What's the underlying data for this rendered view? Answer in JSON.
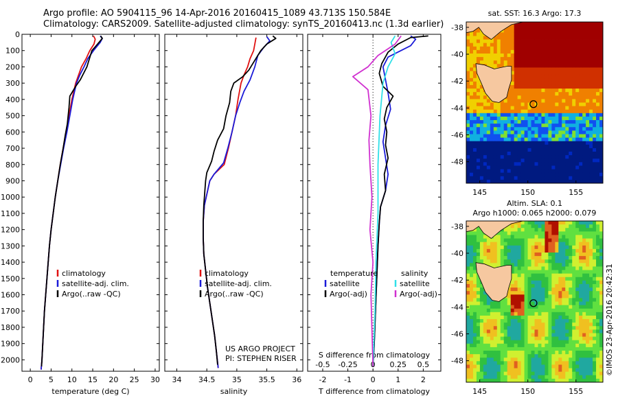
{
  "header": {
    "line1": "Argo profile: AO 5904115_96 14-Apr-2016 20160415_1089 43.713S 150.584E",
    "line2": "Climatology: CARS2009. Satellite-adjusted climatology: synTS_20160413.nc (1.3d earlier)"
  },
  "timestamp": "©IMOS 23-Apr-2016 20:42:31",
  "colors": {
    "climatology": "#e01010",
    "satellite": "#1a1ad8",
    "argo": "#000000",
    "sat_salinity": "#30e0e8",
    "argo_salinity": "#d030d0"
  },
  "chart_data": [
    {
      "type": "line",
      "xlabel": "temperature (deg C)",
      "ylabel": "",
      "xlim": [
        -2,
        31
      ],
      "ylim": [
        2070,
        0
      ],
      "xticks": [
        "0",
        "5",
        "10",
        "15",
        "20",
        "25",
        "30"
      ],
      "yticks": [
        "0",
        "100",
        "200",
        "300",
        "400",
        "500",
        "600",
        "700",
        "800",
        "900",
        "1000",
        "1100",
        "1200",
        "1300",
        "1400",
        "1500",
        "1600",
        "1700",
        "1800",
        "1900",
        "2000"
      ],
      "legend": [
        "climatology",
        "satellite-adj. clim.",
        "Argo(..raw -QC)"
      ],
      "series": [
        {
          "name": "climatology",
          "color": "#e01010",
          "points": [
            [
              15.2,
              10
            ],
            [
              15.6,
              30
            ],
            [
              15.3,
              60
            ],
            [
              14.3,
              100
            ],
            [
              13.4,
              150
            ],
            [
              12.3,
              200
            ],
            [
              11.6,
              250
            ],
            [
              10.9,
              300
            ],
            [
              10.0,
              400
            ],
            [
              9.3,
              500
            ],
            [
              8.6,
              600
            ],
            [
              7.9,
              700
            ],
            [
              7.2,
              800
            ],
            [
              6.6,
              900
            ],
            [
              6.0,
              1000
            ],
            [
              5.5,
              1100
            ],
            [
              5.0,
              1200
            ],
            [
              4.6,
              1300
            ],
            [
              4.3,
              1400
            ],
            [
              4.0,
              1500
            ],
            [
              3.7,
              1600
            ],
            [
              3.4,
              1700
            ],
            [
              3.2,
              1800
            ],
            [
              3.0,
              1900
            ],
            [
              2.8,
              2000
            ],
            [
              2.6,
              2060
            ]
          ]
        },
        {
          "name": "satellite-adj. clim.",
          "color": "#1a1ad8",
          "points": [
            [
              16.8,
              10
            ],
            [
              17.3,
              25
            ],
            [
              16.8,
              50
            ],
            [
              15.2,
              100
            ],
            [
              13.8,
              150
            ],
            [
              12.9,
              200
            ],
            [
              11.9,
              250
            ],
            [
              11.1,
              300
            ],
            [
              10.2,
              400
            ],
            [
              9.5,
              500
            ],
            [
              8.8,
              600
            ],
            [
              8.0,
              700
            ],
            [
              7.3,
              800
            ],
            [
              6.6,
              900
            ],
            [
              6.0,
              1000
            ],
            [
              5.5,
              1100
            ],
            [
              5.0,
              1200
            ],
            [
              4.6,
              1300
            ],
            [
              4.3,
              1400
            ],
            [
              4.0,
              1500
            ],
            [
              3.7,
              1600
            ],
            [
              3.4,
              1700
            ],
            [
              3.2,
              1800
            ],
            [
              3.0,
              1900
            ],
            [
              2.8,
              2000
            ],
            [
              2.6,
              2060
            ]
          ]
        },
        {
          "name": "Argo(..raw -QC)",
          "color": "#000000",
          "points": [
            [
              16.9,
              10
            ],
            [
              17.3,
              25
            ],
            [
              16.5,
              50
            ],
            [
              15.5,
              80
            ],
            [
              14.8,
              100
            ],
            [
              14.2,
              150
            ],
            [
              13.6,
              200
            ],
            [
              12.0,
              280
            ],
            [
              10.9,
              320
            ],
            [
              9.5,
              380
            ],
            [
              9.3,
              450
            ],
            [
              8.9,
              550
            ],
            [
              8.4,
              620
            ],
            [
              7.9,
              700
            ],
            [
              7.2,
              800
            ],
            [
              6.6,
              900
            ],
            [
              6.0,
              1000
            ],
            [
              5.5,
              1100
            ],
            [
              5.0,
              1200
            ],
            [
              4.6,
              1300
            ],
            [
              4.3,
              1400
            ],
            [
              4.0,
              1500
            ],
            [
              3.7,
              1600
            ],
            [
              3.4,
              1700
            ],
            [
              3.2,
              1800
            ],
            [
              3.0,
              1900
            ],
            [
              2.8,
              2000
            ],
            [
              2.7,
              2040
            ]
          ]
        }
      ]
    },
    {
      "type": "line",
      "xlabel": "salinity",
      "xlim": [
        33.8,
        36.1
      ],
      "ylim": [
        2070,
        0
      ],
      "xticks": [
        "34",
        "34.5",
        "35",
        "35.5",
        "36"
      ],
      "legend": [
        "climatology",
        "satellite-adj. clim.",
        "Argo(..raw -QC)"
      ],
      "annotation": [
        "US ARGO PROJECT",
        "PI: STEPHEN RISER"
      ],
      "series": [
        {
          "name": "climatology",
          "color": "#e01010",
          "points": [
            [
              35.32,
              20
            ],
            [
              35.3,
              60
            ],
            [
              35.28,
              100
            ],
            [
              35.22,
              150
            ],
            [
              35.18,
              200
            ],
            [
              35.12,
              250
            ],
            [
              35.07,
              300
            ],
            [
              35.02,
              400
            ],
            [
              34.98,
              500
            ],
            [
              34.92,
              600
            ],
            [
              34.86,
              700
            ],
            [
              34.79,
              800
            ],
            [
              34.62,
              860
            ],
            [
              34.55,
              900
            ],
            [
              34.52,
              950
            ],
            [
              34.46,
              1050
            ],
            [
              34.44,
              1150
            ],
            [
              34.44,
              1250
            ],
            [
              34.45,
              1350
            ],
            [
              34.48,
              1450
            ],
            [
              34.51,
              1550
            ],
            [
              34.55,
              1650
            ],
            [
              34.59,
              1750
            ],
            [
              34.63,
              1850
            ],
            [
              34.66,
              1950
            ],
            [
              34.69,
              2050
            ]
          ]
        },
        {
          "name": "satellite-adj. clim.",
          "color": "#1a1ad8",
          "points": [
            [
              35.5,
              15
            ],
            [
              35.55,
              40
            ],
            [
              35.45,
              80
            ],
            [
              35.35,
              130
            ],
            [
              35.3,
              200
            ],
            [
              35.22,
              280
            ],
            [
              35.12,
              350
            ],
            [
              35.05,
              420
            ],
            [
              34.98,
              500
            ],
            [
              34.92,
              600
            ],
            [
              34.85,
              700
            ],
            [
              34.78,
              790
            ],
            [
              34.62,
              860
            ],
            [
              34.55,
              900
            ],
            [
              34.52,
              950
            ],
            [
              34.46,
              1050
            ],
            [
              34.44,
              1150
            ],
            [
              34.44,
              1250
            ],
            [
              34.45,
              1350
            ],
            [
              34.48,
              1450
            ],
            [
              34.51,
              1550
            ],
            [
              34.55,
              1650
            ],
            [
              34.59,
              1750
            ],
            [
              34.63,
              1850
            ],
            [
              34.66,
              1950
            ],
            [
              34.69,
              2050
            ]
          ]
        },
        {
          "name": "Argo(..raw -QC)",
          "color": "#000000",
          "points": [
            [
              35.6,
              10
            ],
            [
              35.65,
              25
            ],
            [
              35.5,
              60
            ],
            [
              35.4,
              100
            ],
            [
              35.3,
              160
            ],
            [
              35.2,
              220
            ],
            [
              35.1,
              260
            ],
            [
              34.95,
              300
            ],
            [
              34.9,
              350
            ],
            [
              34.88,
              420
            ],
            [
              34.82,
              500
            ],
            [
              34.78,
              580
            ],
            [
              34.68,
              650
            ],
            [
              34.62,
              720
            ],
            [
              34.58,
              780
            ],
            [
              34.5,
              850
            ],
            [
              34.48,
              900
            ],
            [
              34.47,
              950
            ],
            [
              34.45,
              1050
            ],
            [
              34.44,
              1150
            ],
            [
              34.44,
              1250
            ],
            [
              34.45,
              1350
            ],
            [
              34.48,
              1450
            ],
            [
              34.51,
              1550
            ],
            [
              34.55,
              1650
            ],
            [
              34.59,
              1750
            ],
            [
              34.63,
              1850
            ],
            [
              34.66,
              1950
            ],
            [
              34.68,
              2030
            ]
          ]
        }
      ]
    },
    {
      "type": "line",
      "xlabel": "T difference from climatology",
      "xlabel_top": "S difference from climatology",
      "xlim": [
        -2.6,
        2.7
      ],
      "ylim": [
        2070,
        0
      ],
      "xticks_bottom": [
        "-2",
        "-1",
        "0",
        "1",
        "2"
      ],
      "xticks_top": [
        "-0.5",
        "-0.25",
        "0",
        "0.25",
        "0.5"
      ],
      "legend_left_title": "temperature",
      "legend_left": [
        "satellite",
        "Argo(-adj)"
      ],
      "legend_right_title": "salinity",
      "legend_right": [
        "satellite",
        "Argo(-adj)"
      ],
      "series": [
        {
          "name": "temperature satellite",
          "color": "#1a1ad8",
          "points": [
            [
              1.5,
              10
            ],
            [
              1.7,
              30
            ],
            [
              1.5,
              70
            ],
            [
              0.6,
              140
            ],
            [
              0.4,
              200
            ],
            [
              0.5,
              280
            ],
            [
              0.6,
              360
            ],
            [
              0.7,
              460
            ],
            [
              0.5,
              560
            ],
            [
              0.4,
              660
            ],
            [
              0.5,
              760
            ],
            [
              0.6,
              860
            ],
            [
              0.5,
              960
            ],
            [
              0.3,
              1060
            ],
            [
              0.25,
              1160
            ],
            [
              0.2,
              1300
            ],
            [
              0.15,
              1500
            ],
            [
              0.1,
              1700
            ],
            [
              0.05,
              1900
            ],
            [
              0.0,
              2040
            ]
          ]
        },
        {
          "name": "temperature Argo(-adj)",
          "color": "#000000",
          "points": [
            [
              2.2,
              10
            ],
            [
              1.5,
              20
            ],
            [
              1.0,
              60
            ],
            [
              0.6,
              110
            ],
            [
              0.35,
              180
            ],
            [
              0.25,
              240
            ],
            [
              0.4,
              320
            ],
            [
              0.8,
              380
            ],
            [
              0.55,
              450
            ],
            [
              0.45,
              520
            ],
            [
              0.55,
              600
            ],
            [
              0.5,
              680
            ],
            [
              0.6,
              760
            ],
            [
              0.45,
              860
            ],
            [
              0.5,
              960
            ],
            [
              0.3,
              1060
            ],
            [
              0.25,
              1160
            ],
            [
              0.2,
              1300
            ],
            [
              0.15,
              1500
            ],
            [
              0.1,
              1700
            ],
            [
              0.05,
              1900
            ],
            [
              0.0,
              2040
            ]
          ]
        },
        {
          "name": "salinity satellite",
          "color": "#30e0e8",
          "points": [
            [
              0.22,
              10
            ],
            [
              0.18,
              50
            ],
            [
              0.22,
              120
            ],
            [
              0.15,
              200
            ],
            [
              0.1,
              300
            ],
            [
              0.07,
              500
            ],
            [
              0.05,
              800
            ],
            [
              0.05,
              1100
            ],
            [
              0.03,
              1400
            ],
            [
              0.02,
              1700
            ],
            [
              0.0,
              2040
            ]
          ]
        },
        {
          "name": "salinity Argo(-adj)",
          "color": "#d030d0",
          "points": [
            [
              0.28,
              10
            ],
            [
              0.22,
              60
            ],
            [
              0.05,
              130
            ],
            [
              -0.05,
              200
            ],
            [
              -0.2,
              260
            ],
            [
              -0.05,
              340
            ],
            [
              -0.02,
              500
            ],
            [
              -0.04,
              650
            ],
            [
              -0.03,
              800
            ],
            [
              -0.01,
              1000
            ],
            [
              -0.03,
              1200
            ],
            [
              0.0,
              1400
            ],
            [
              -0.02,
              1600
            ],
            [
              0.0,
              2040
            ]
          ]
        }
      ]
    },
    {
      "type": "heatmap",
      "title": "sat. SST: 16.3 Argo: 17.3",
      "xticks": [
        "145",
        "150",
        "155"
      ],
      "yticks": [
        "-38",
        "-40",
        "-42",
        "-44",
        "-46",
        "-48"
      ],
      "xlim": [
        143.6,
        157.8
      ],
      "ylim": [
        -49.6,
        -37.6
      ],
      "marker": {
        "lon": 150.584,
        "lat": -43.713
      }
    },
    {
      "type": "heatmap",
      "title": "Altim. SLA: 0.1",
      "subtitle": "Argo h1000: 0.065 h2000: 0.079",
      "xticks": [
        "145",
        "150",
        "155"
      ],
      "yticks": [
        "-38",
        "-40",
        "-42",
        "-44",
        "-46",
        "-48"
      ],
      "xlim": [
        143.6,
        157.8
      ],
      "ylim": [
        -49.6,
        -37.6
      ],
      "marker": {
        "lon": 150.584,
        "lat": -43.713
      }
    }
  ]
}
